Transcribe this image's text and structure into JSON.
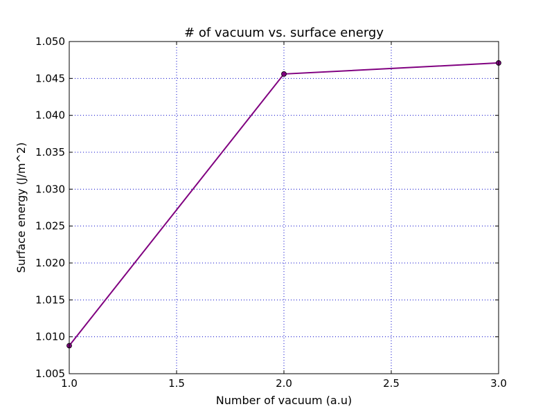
{
  "chart_data": {
    "type": "line",
    "title": "# of vacuum vs. surface energy",
    "xlabel": "Number of vacuum (a.u)",
    "ylabel": "Surface energy (J/m^2)",
    "xlim": [
      1.0,
      3.0
    ],
    "ylim": [
      1.005,
      1.05
    ],
    "xticks": [
      1.0,
      1.5,
      2.0,
      2.5,
      3.0
    ],
    "xtick_labels": [
      "1.0",
      "1.5",
      "2.0",
      "2.5",
      "3.0"
    ],
    "yticks": [
      1.005,
      1.01,
      1.015,
      1.02,
      1.025,
      1.03,
      1.035,
      1.04,
      1.045,
      1.05
    ],
    "ytick_labels": [
      "1.005",
      "1.010",
      "1.015",
      "1.020",
      "1.025",
      "1.030",
      "1.035",
      "1.040",
      "1.045",
      "1.050"
    ],
    "grid": true,
    "series": [
      {
        "x": [
          1.0,
          2.0,
          3.0
        ],
        "y": [
          1.0088,
          1.0456,
          1.0471
        ],
        "color": "#800080"
      }
    ]
  }
}
